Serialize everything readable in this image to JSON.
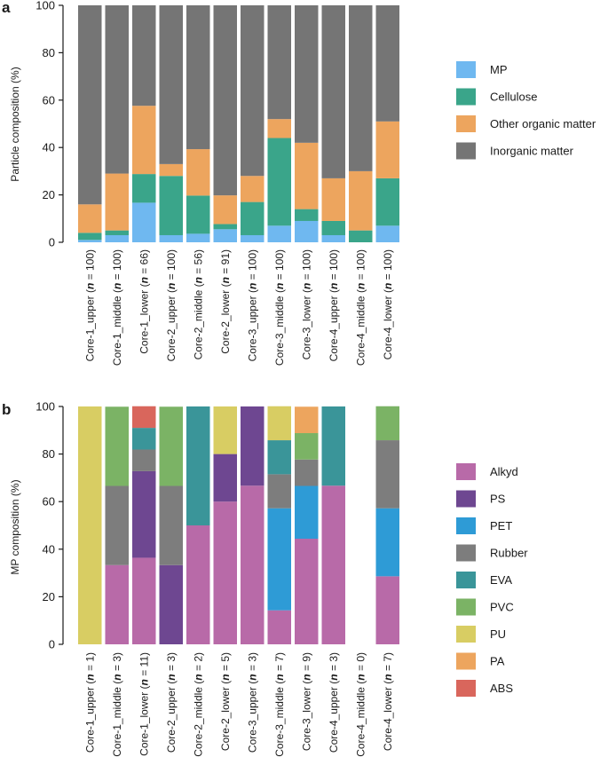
{
  "chart_data": [
    {
      "type": "bar",
      "stacked": true,
      "panel": "a",
      "ylabel": "Particle composition (%)",
      "ylim": [
        0,
        100
      ],
      "yticks": [
        0,
        20,
        40,
        60,
        80,
        100
      ],
      "categories": [
        {
          "name": "Core-1_upper",
          "n": "100"
        },
        {
          "name": "Core-1_middle",
          "n": "100"
        },
        {
          "name": "Core-1_lower",
          "n": "66"
        },
        {
          "name": "Core-2_upper",
          "n": "100"
        },
        {
          "name": "Core-2_middle",
          "n": "56"
        },
        {
          "name": "Core-2_lower",
          "n": "91"
        },
        {
          "name": "Core-3_upper",
          "n": "100"
        },
        {
          "name": "Core-3_middle",
          "n": "100"
        },
        {
          "name": "Core-3_lower",
          "n": "100"
        },
        {
          "name": "Core-4_upper",
          "n": "100"
        },
        {
          "name": "Core-4_middle",
          "n": "100"
        },
        {
          "name": "Core-4_lower",
          "n": "100"
        }
      ],
      "series": [
        {
          "name": "MP",
          "color": "#6fb8f0",
          "values": [
            1,
            3,
            16.7,
            3,
            3.6,
            5.5,
            3,
            7,
            9,
            3,
            0,
            7
          ]
        },
        {
          "name": "Cellulose",
          "color": "#3aa58a",
          "values": [
            3,
            2,
            12.1,
            25,
            16.1,
            2.2,
            14,
            37,
            5,
            6,
            5,
            20
          ]
        },
        {
          "name": "Other organic matter",
          "color": "#eda55e",
          "values": [
            12,
            24,
            28.8,
            5,
            19.6,
            12.1,
            11,
            8,
            28,
            18,
            25,
            24
          ]
        },
        {
          "name": "Inorganic matter",
          "color": "#757575",
          "values": [
            84,
            71,
            42.4,
            67,
            60.7,
            80.2,
            72,
            48,
            58,
            73,
            70,
            49
          ]
        }
      ]
    },
    {
      "type": "bar",
      "stacked": true,
      "panel": "b",
      "ylabel": "MP composition (%)",
      "ylim": [
        0,
        100
      ],
      "yticks": [
        0,
        20,
        40,
        60,
        80,
        100
      ],
      "categories": [
        {
          "name": "Core-1_upper",
          "n": "1"
        },
        {
          "name": "Core-1_middle",
          "n": "3"
        },
        {
          "name": "Core-1_lower",
          "n": "11"
        },
        {
          "name": "Core-2_upper",
          "n": "3"
        },
        {
          "name": "Core-2_middle",
          "n": "2"
        },
        {
          "name": "Core-2_lower",
          "n": "5"
        },
        {
          "name": "Core-3_upper",
          "n": "3"
        },
        {
          "name": "Core-3_middle",
          "n": "7"
        },
        {
          "name": "Core-3_lower",
          "n": "9"
        },
        {
          "name": "Core-4_upper",
          "n": "3"
        },
        {
          "name": "Core-4_middle",
          "n": "0"
        },
        {
          "name": "Core-4_lower",
          "n": "7"
        }
      ],
      "series": [
        {
          "name": "Alkyd",
          "color": "#b86aa8",
          "values": [
            0,
            33.3,
            36.4,
            0,
            50,
            60,
            66.7,
            14.3,
            44.4,
            66.7,
            0,
            28.6
          ]
        },
        {
          "name": "PS",
          "color": "#6e4791",
          "values": [
            0,
            0,
            36.4,
            33.3,
            0,
            20,
            33.3,
            0,
            0,
            0,
            0,
            0
          ]
        },
        {
          "name": "PET",
          "color": "#2e9bd6",
          "values": [
            0,
            0,
            0,
            0,
            0,
            0,
            0,
            42.9,
            22.2,
            0,
            0,
            28.6
          ]
        },
        {
          "name": "Rubber",
          "color": "#7d7d7d",
          "values": [
            0,
            33.3,
            9.1,
            33.3,
            0,
            0,
            0,
            14.3,
            11.1,
            0,
            0,
            28.6
          ]
        },
        {
          "name": "EVA",
          "color": "#3a9599",
          "values": [
            0,
            0,
            9.1,
            0,
            50,
            0,
            0,
            14.3,
            0,
            33.3,
            0,
            0
          ]
        },
        {
          "name": "PVC",
          "color": "#7bb365",
          "values": [
            0,
            33.3,
            0,
            33.3,
            0,
            0,
            0,
            0,
            11.1,
            0,
            0,
            14.3
          ]
        },
        {
          "name": "PU",
          "color": "#d8cd63",
          "values": [
            100,
            0,
            0,
            0,
            0,
            20,
            0,
            14.3,
            0,
            0,
            0,
            0
          ]
        },
        {
          "name": "PA",
          "color": "#eda55e",
          "values": [
            0,
            0,
            0,
            0,
            0,
            0,
            0,
            0,
            11.1,
            0,
            0,
            0
          ]
        },
        {
          "name": "ABS",
          "color": "#d9665c",
          "values": [
            0,
            0,
            9.1,
            0,
            0,
            0,
            0,
            0,
            0,
            0,
            0,
            0
          ]
        }
      ]
    }
  ]
}
